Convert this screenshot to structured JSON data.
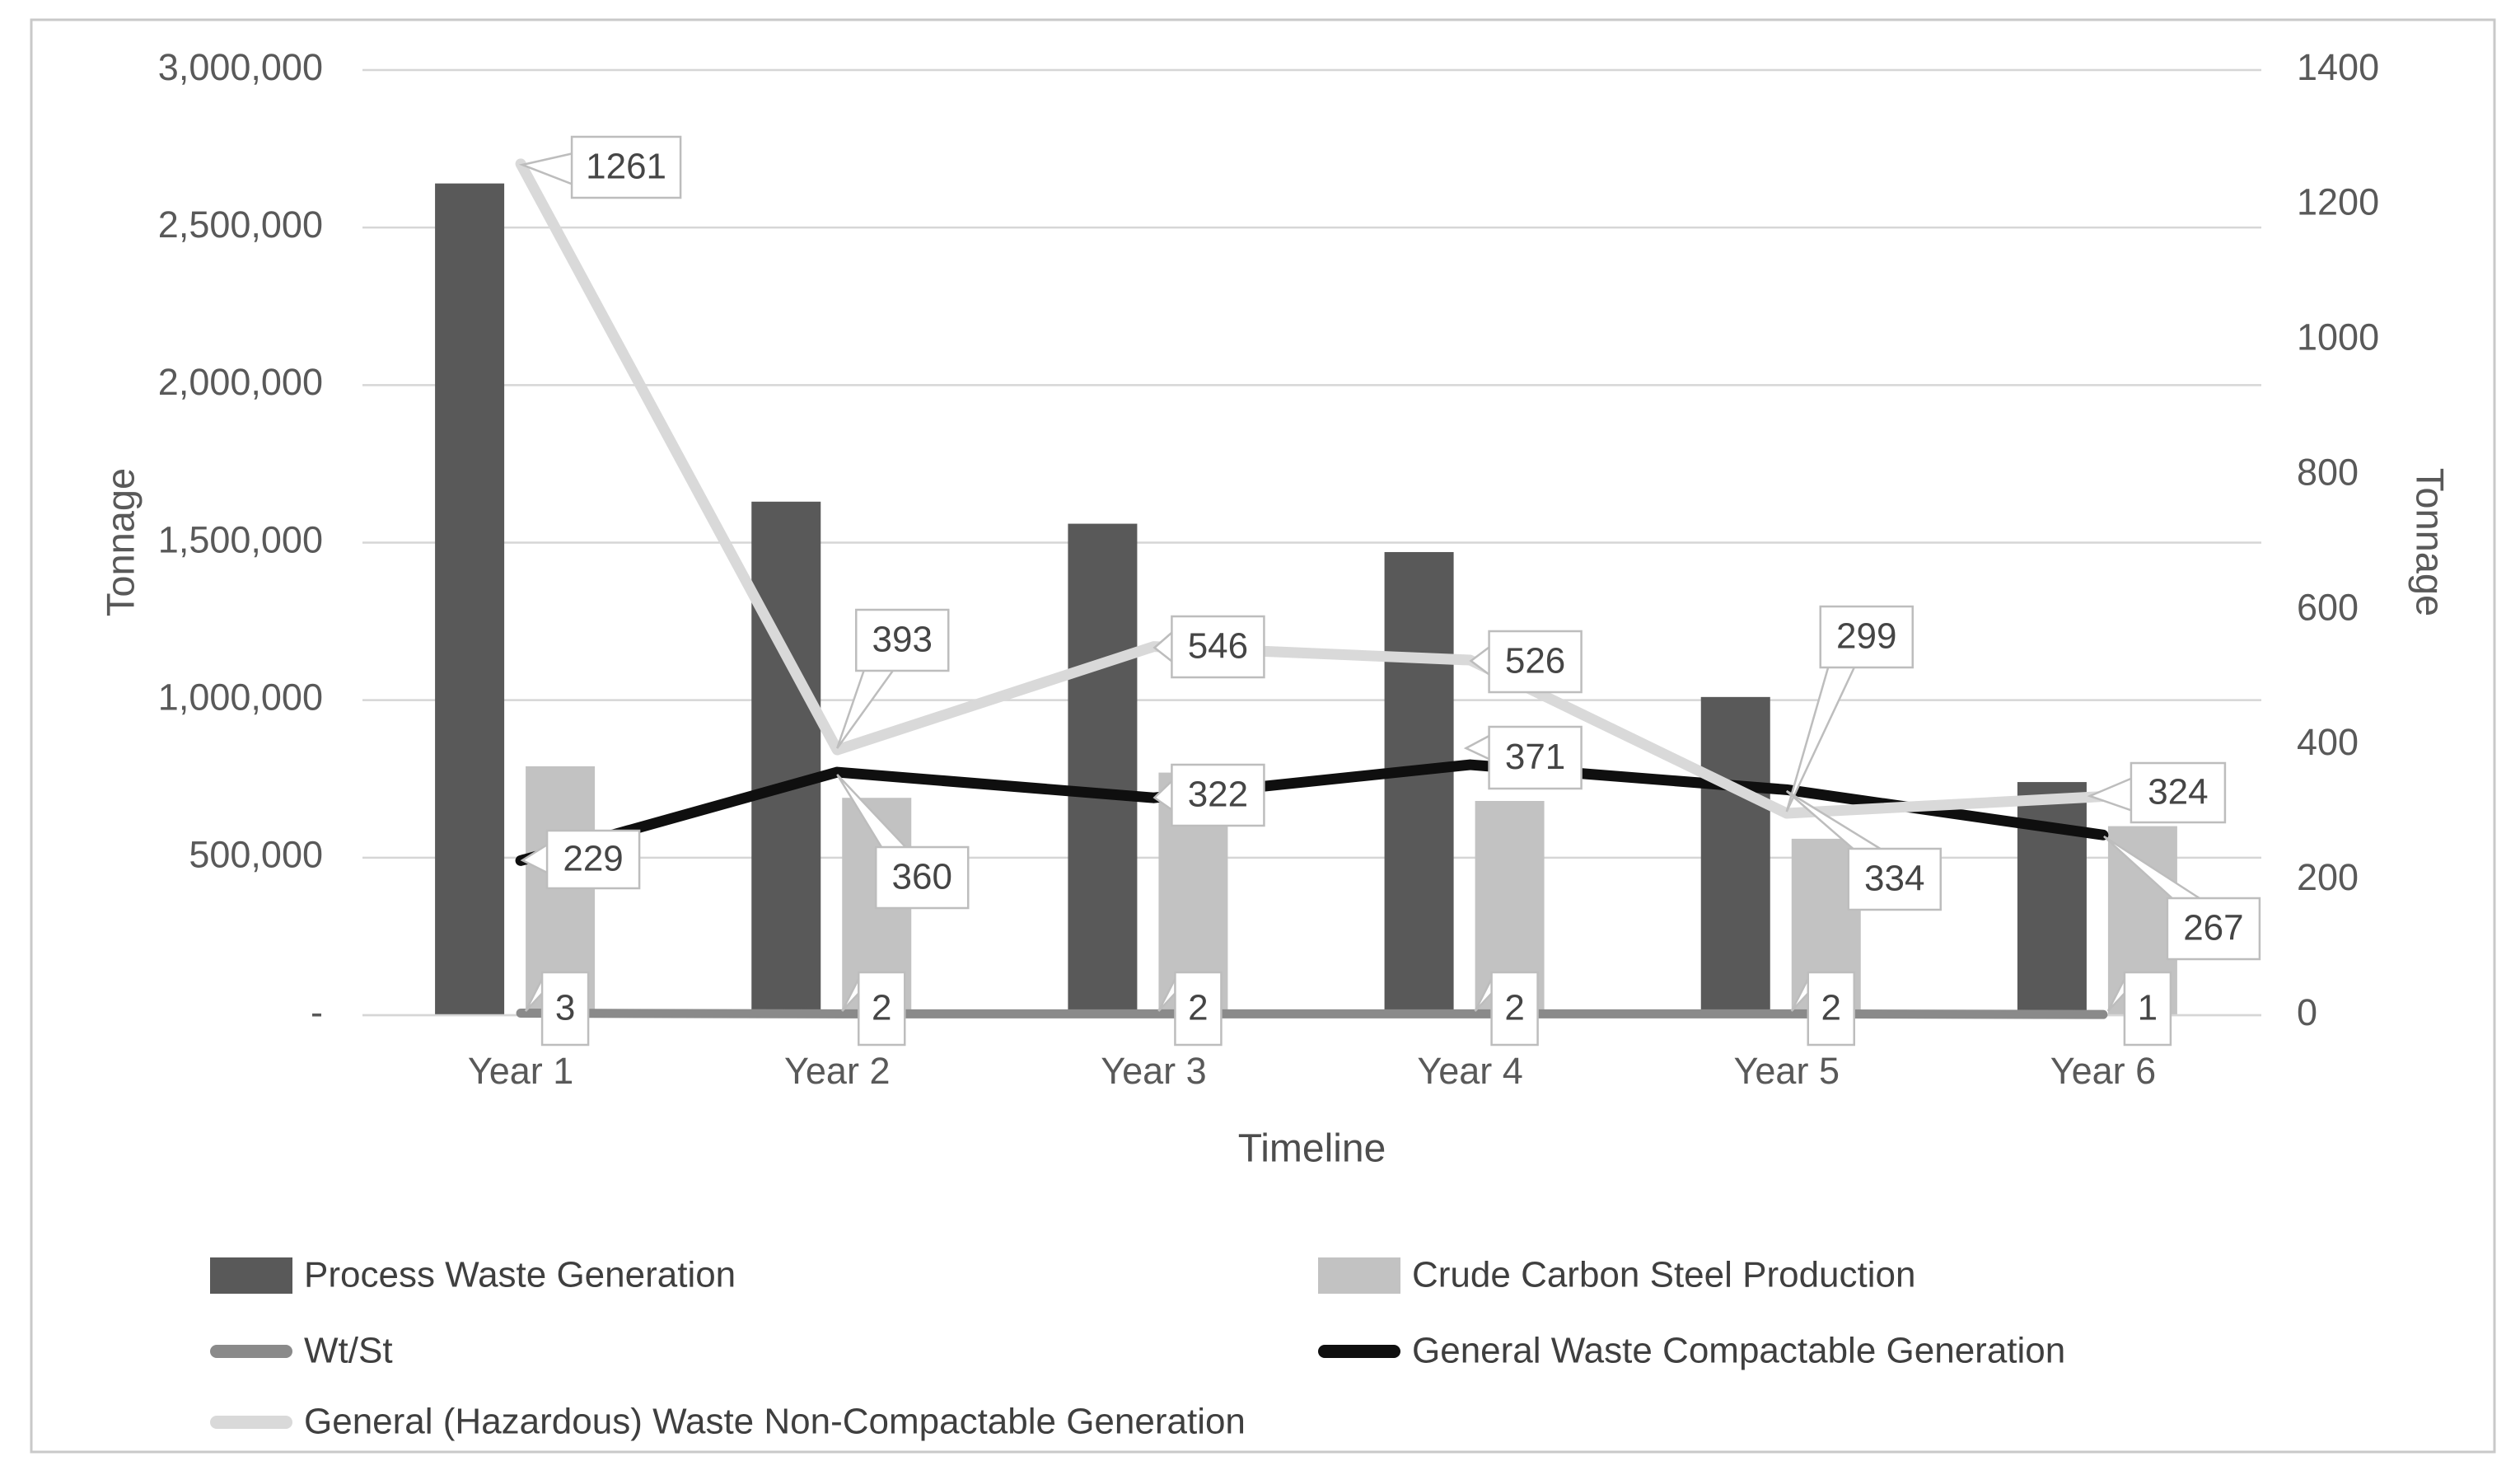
{
  "chart_data": {
    "type": "combo-bar-line",
    "title": "",
    "categories": [
      "Year 1",
      "Year 2",
      "Year 3",
      "Year 4",
      "Year 5",
      "Year 6"
    ],
    "x_axis": {
      "title": "Timeline"
    },
    "left_axis": {
      "title": "Tonnage",
      "min": 0,
      "max": 3000000,
      "step": 500000,
      "tick_labels": [
        "-",
        "500,000",
        "1,000,000",
        "1,500,000",
        "2,000,000",
        "2,500,000",
        "3,000,000"
      ]
    },
    "right_axis": {
      "title": "Tonnage",
      "min": 0,
      "max": 1400,
      "step": 200,
      "tick_labels": [
        "0",
        "200",
        "400",
        "600",
        "800",
        "1000",
        "1200",
        "1400"
      ]
    },
    "grid": true,
    "legend_position": "bottom",
    "colors": {
      "process_waste": "#595959",
      "crude_steel": "#c2c2c2",
      "wt_st": "#8a8a8a",
      "compactable": "#0f0f0f",
      "non_compactable": "#d9d9d9",
      "gridline": "#d6d6d6",
      "axis_text": "#595959",
      "callout_border": "#bdbdbd",
      "callout_text": "#454545",
      "frame_border": "#c9c9c9"
    },
    "series": [
      {
        "name": "Process Waste Generation",
        "type": "bar",
        "axis": "left",
        "values": [
          2640000,
          1630000,
          1560000,
          1470000,
          1010000,
          740000
        ]
      },
      {
        "name": "Crude Carbon Steel Production",
        "type": "bar",
        "axis": "left",
        "values": [
          790000,
          690000,
          770000,
          680000,
          560000,
          600000
        ]
      },
      {
        "name": "Wt/St",
        "type": "line",
        "axis": "right",
        "values": [
          3,
          2,
          2,
          2,
          2,
          1
        ],
        "data_labels": [
          "3",
          "2",
          "2",
          "2",
          "2",
          "1"
        ]
      },
      {
        "name": "General Waste Compactable Generation",
        "type": "line",
        "axis": "right",
        "values": [
          229,
          360,
          322,
          371,
          334,
          267
        ],
        "data_labels": [
          "229",
          "360",
          "322",
          "371",
          "334",
          "267"
        ]
      },
      {
        "name": "General (Hazardous) Waste Non-Compactable Generation",
        "type": "line",
        "axis": "right",
        "values": [
          1261,
          393,
          546,
          526,
          299,
          324
        ],
        "data_labels": [
          "1261",
          "393",
          "546",
          "526",
          "299",
          "324"
        ]
      }
    ]
  }
}
